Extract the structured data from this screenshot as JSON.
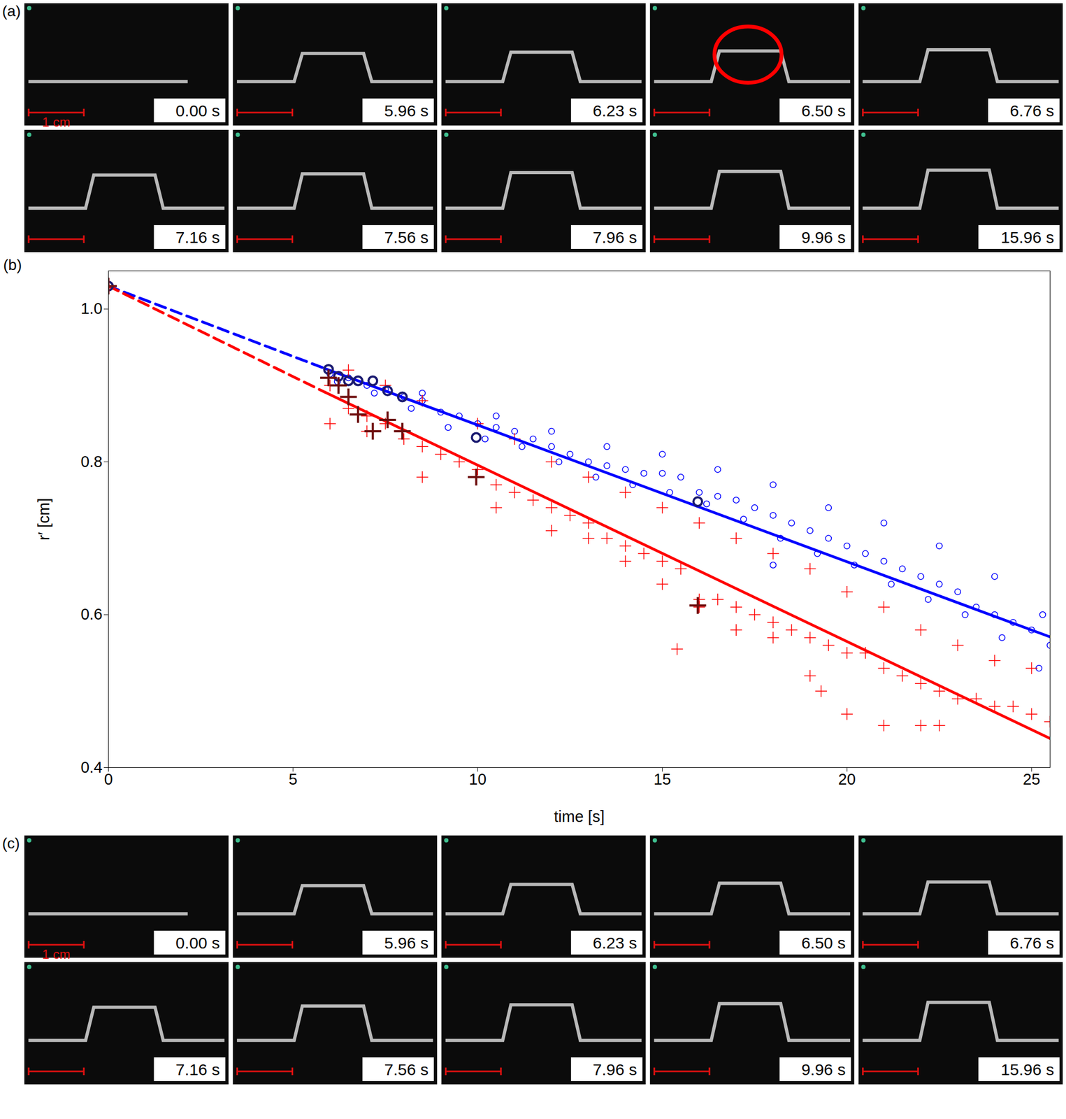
{
  "panels": [
    {
      "label": "(a)",
      "frames": [
        {
          "time": "0.00 s",
          "scale_bar": "1 cm"
        },
        {
          "time": "5.96 s"
        },
        {
          "time": "6.23 s"
        },
        {
          "time": "6.50 s",
          "circled": true
        },
        {
          "time": "6.76 s"
        },
        {
          "time": "7.16 s"
        },
        {
          "time": "7.56 s"
        },
        {
          "time": "7.96 s"
        },
        {
          "time": "9.96 s"
        },
        {
          "time": "15.96 s"
        }
      ]
    },
    {
      "label": "(c)",
      "frames": [
        {
          "time": "0.00 s",
          "scale_bar": "1 cm"
        },
        {
          "time": "5.96 s"
        },
        {
          "time": "6.23 s"
        },
        {
          "time": "6.50 s"
        },
        {
          "time": "6.76 s"
        },
        {
          "time": "7.16 s"
        },
        {
          "time": "7.56 s"
        },
        {
          "time": "7.96 s"
        },
        {
          "time": "9.96 s"
        },
        {
          "time": "15.96 s"
        }
      ]
    }
  ],
  "chart_label": "(b)",
  "chart_data": {
    "type": "scatter",
    "x_label": "time [s]",
    "y_label": "r′ [cm]",
    "xlim": [
      0,
      25.5
    ],
    "ylim": [
      0.4,
      1.05
    ],
    "xticks": [
      0,
      5,
      10,
      15,
      20,
      25
    ],
    "yticks": [
      0.4,
      0.6,
      0.8,
      {
        "value": 1,
        "label": "1.0"
      }
    ],
    "grid": false,
    "series": [
      {
        "type": "scatter",
        "marker": "circle",
        "color": "#0000ff",
        "x": [
          6.0,
          6.5,
          7.0,
          7.5,
          8.0,
          8.5,
          9.0,
          9.5,
          10.0,
          10.5,
          11.0,
          11.5,
          12.0,
          12.5,
          13.0,
          13.5,
          14.0,
          14.5,
          15.0,
          15.5,
          16.0,
          16.5,
          17.0,
          17.5,
          18.0,
          18.5,
          19.0,
          19.5,
          20.0,
          20.5,
          21.0,
          21.5,
          22.0,
          22.5,
          23.0,
          23.5,
          24.0,
          24.5,
          25.0,
          25.5,
          6.2,
          7.2,
          8.2,
          9.2,
          10.2,
          11.2,
          12.2,
          13.2,
          14.2,
          15.2,
          16.2,
          17.2,
          18.2,
          19.2,
          20.2,
          21.2,
          22.2,
          23.2,
          24.2,
          25.2,
          18.0,
          8.5,
          10.5,
          12.0,
          13.5,
          15.0,
          16.5,
          18.0,
          19.5,
          21.0,
          22.5,
          24.0,
          25.3
        ],
        "values": [
          0.915,
          0.91,
          0.9,
          0.895,
          0.885,
          0.88,
          0.865,
          0.86,
          0.85,
          0.845,
          0.84,
          0.83,
          0.82,
          0.81,
          0.8,
          0.795,
          0.79,
          0.785,
          0.785,
          0.78,
          0.76,
          0.755,
          0.75,
          0.74,
          0.73,
          0.72,
          0.71,
          0.7,
          0.69,
          0.68,
          0.67,
          0.66,
          0.65,
          0.64,
          0.63,
          0.61,
          0.6,
          0.59,
          0.58,
          0.56,
          0.905,
          0.89,
          0.87,
          0.845,
          0.83,
          0.82,
          0.8,
          0.78,
          0.77,
          0.76,
          0.745,
          0.725,
          0.7,
          0.68,
          0.665,
          0.64,
          0.62,
          0.6,
          0.57,
          0.53,
          0.665,
          0.89,
          0.86,
          0.84,
          0.82,
          0.81,
          0.79,
          0.77,
          0.74,
          0.72,
          0.69,
          0.65,
          0.6
        ]
      },
      {
        "type": "scatter",
        "marker": "plus",
        "color": "#ff0000",
        "x": [
          6.0,
          6.5,
          7.0,
          7.5,
          8.0,
          8.5,
          9.0,
          9.5,
          10.0,
          10.5,
          11.0,
          11.5,
          12.0,
          12.5,
          13.0,
          13.5,
          14.0,
          14.5,
          15.0,
          15.5,
          16.0,
          16.5,
          17.0,
          17.5,
          18.0,
          18.5,
          19.0,
          19.5,
          20.0,
          20.5,
          21.0,
          21.5,
          22.0,
          22.5,
          23.0,
          23.5,
          24.0,
          24.5,
          25.0,
          25.5,
          6.5,
          7.5,
          8.5,
          10.0,
          11.0,
          12.0,
          13.0,
          14.0,
          15.0,
          16.0,
          17.0,
          18.0,
          19.0,
          20.0,
          21.0,
          22.0,
          23.0,
          24.0,
          25.0,
          6.0,
          7.0,
          8.5,
          10.5,
          12.0,
          13.0,
          14.0,
          15.0,
          16.0,
          17.0,
          18.0,
          19.0,
          19.3,
          20.0,
          21.0,
          22.0,
          22.5,
          15.4
        ],
        "values": [
          0.9,
          0.87,
          0.86,
          0.85,
          0.83,
          0.82,
          0.81,
          0.8,
          0.79,
          0.77,
          0.76,
          0.75,
          0.74,
          0.73,
          0.72,
          0.7,
          0.69,
          0.68,
          0.67,
          0.66,
          0.62,
          0.62,
          0.61,
          0.6,
          0.59,
          0.58,
          0.57,
          0.56,
          0.55,
          0.55,
          0.53,
          0.52,
          0.51,
          0.5,
          0.49,
          0.49,
          0.48,
          0.48,
          0.47,
          0.46,
          0.92,
          0.9,
          0.88,
          0.85,
          0.83,
          0.8,
          0.78,
          0.76,
          0.74,
          0.72,
          0.7,
          0.68,
          0.66,
          0.63,
          0.61,
          0.58,
          0.56,
          0.54,
          0.53,
          0.85,
          0.84,
          0.78,
          0.74,
          0.71,
          0.7,
          0.67,
          0.64,
          0.61,
          0.58,
          0.57,
          0.52,
          0.5,
          0.47,
          0.455,
          0.455,
          0.455,
          0.555
        ]
      },
      {
        "type": "line",
        "line_style": "dashed",
        "color": "#0000ff",
        "x": [
          0,
          5.87
        ],
        "values": [
          1.03,
          0.922
        ]
      },
      {
        "type": "line",
        "line_style": "dashed",
        "color": "#ff0000",
        "x": [
          0,
          5.87
        ],
        "values": [
          1.03,
          0.891
        ]
      },
      {
        "type": "line",
        "line_style": "solid",
        "color": "#0000ff",
        "x": [
          5.87,
          25.5
        ],
        "values": [
          0.922,
          0.571
        ]
      },
      {
        "type": "line",
        "line_style": "solid",
        "color": "#ff0000",
        "x": [
          5.87,
          25.5
        ],
        "values": [
          0.891,
          0.438
        ]
      },
      {
        "type": "scatter",
        "marker": "circle_bold",
        "color": "#1a1a70",
        "x": [
          0,
          5.96,
          6.23,
          6.5,
          6.76,
          7.16,
          7.56,
          7.96,
          9.96,
          15.96
        ],
        "values": [
          1.03,
          0.921,
          0.912,
          0.906,
          0.906,
          0.906,
          0.893,
          0.885,
          0.832,
          0.748
        ]
      },
      {
        "type": "scatter",
        "marker": "plus_bold",
        "color": "#6e0f0f",
        "x": [
          0,
          5.96,
          6.23,
          6.5,
          6.76,
          7.16,
          7.56,
          7.96,
          9.96,
          15.96
        ],
        "values": [
          1.03,
          0.91,
          0.9,
          0.885,
          0.862,
          0.84,
          0.855,
          0.84,
          0.78,
          0.612
        ]
      }
    ]
  }
}
